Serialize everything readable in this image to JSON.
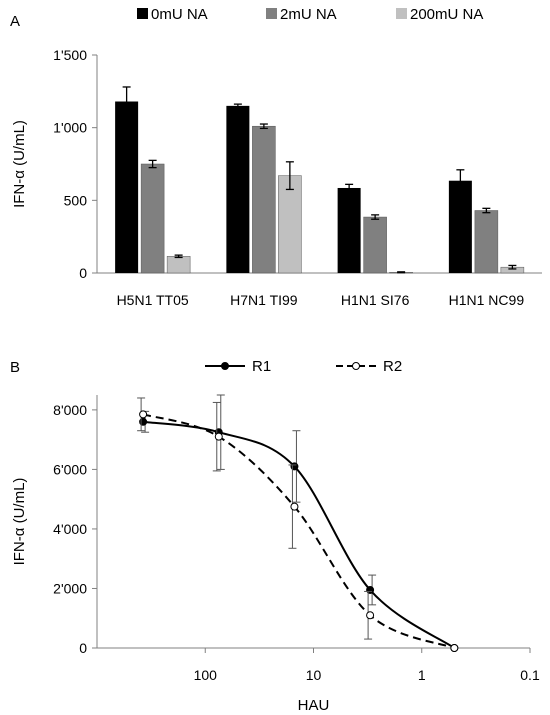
{
  "chart_data": [
    {
      "panel_label": "A",
      "type": "bar",
      "ylabel": "IFN-α (U/mL)",
      "ylim": [
        0,
        1500
      ],
      "yticks": [
        0,
        500,
        1000,
        1500
      ],
      "ytick_labels": [
        "0",
        "500",
        "1'000",
        "1'500"
      ],
      "categories": [
        "H5N1 TT05",
        "H7N1 TI99",
        "H1N1 SI76",
        "H1N1 NC99"
      ],
      "legend_position": "top",
      "series": [
        {
          "name": "0mU NA",
          "color": "#000000",
          "values": [
            1180,
            1150,
            585,
            635
          ],
          "errors": [
            100,
            12,
            25,
            75
          ]
        },
        {
          "name": "2mU NA",
          "color": "#808080",
          "values": [
            750,
            1010,
            385,
            430
          ],
          "errors": [
            25,
            15,
            15,
            15
          ]
        },
        {
          "name": "200mU NA",
          "color": "#c0c0c0",
          "values": [
            115,
            670,
            5,
            40
          ],
          "errors": [
            8,
            95,
            3,
            12
          ]
        }
      ]
    },
    {
      "panel_label": "B",
      "type": "line",
      "xlabel": "HAU",
      "ylabel": "IFN-α (U/mL)",
      "xscale": "log",
      "xreversed": true,
      "xlim": [
        1000,
        0.1
      ],
      "xticks": [
        100,
        10,
        1,
        0.1
      ],
      "xtick_labels": [
        "100",
        "10",
        "1",
        "0.1"
      ],
      "ylim": [
        0,
        8500
      ],
      "yticks": [
        0,
        2000,
        4000,
        6000,
        8000
      ],
      "ytick_labels": [
        "0",
        "2'000",
        "4'000",
        "6'000",
        "8'000"
      ],
      "legend_position": "top",
      "series": [
        {
          "name": "R1",
          "line_style": "solid",
          "marker": "filled-circle",
          "x": [
            375,
            75,
            15,
            3,
            0.5
          ],
          "y": [
            7600,
            7250,
            6100,
            1950,
            0
          ],
          "errors": [
            350,
            1250,
            1200,
            500,
            0
          ]
        },
        {
          "name": "R2",
          "line_style": "dashed",
          "marker": "open-circle",
          "x": [
            375,
            75,
            15,
            3,
            0.5
          ],
          "y": [
            7850,
            7100,
            4750,
            1100,
            0
          ],
          "errors": [
            550,
            1150,
            1400,
            800,
            0
          ]
        }
      ]
    }
  ]
}
